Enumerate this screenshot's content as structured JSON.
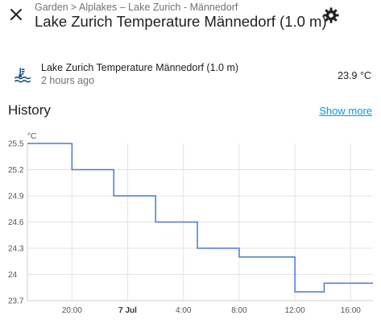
{
  "header": {
    "breadcrumb": [
      "Garden",
      "Alplakes – Lake Zurich - Männedorf"
    ],
    "breadcrumb_separator": ">",
    "title": "Lake Zurich Temperature Männedorf (1.0 m)"
  },
  "icons": {
    "close": "close-icon",
    "settings": "gear-icon",
    "entity": "water-thermometer-icon"
  },
  "entity": {
    "name": "Lake Zurich Temperature Männedorf (1.0 m)",
    "last_changed": "2 hours ago",
    "state": "23.9 °C"
  },
  "history": {
    "title": "History",
    "show_more": "Show more"
  },
  "colors": {
    "line": "#4a78d6",
    "link": "#039be5",
    "icon": "#1e5a86"
  },
  "chart_data": {
    "type": "line",
    "step": true,
    "unit": "°C",
    "x_tick_labels": [
      "20:00",
      "7 Jul",
      "4:00",
      "8:00",
      "12:00",
      "16:00"
    ],
    "x_ticks_hours": [
      20,
      24,
      28,
      32,
      36,
      40
    ],
    "xlim_hours": [
      16.8,
      41.6
    ],
    "y_tick_labels": [
      "25.5",
      "25.2",
      "24.9",
      "24.6",
      "24.3",
      "24",
      "23.7"
    ],
    "ylim": [
      23.7,
      25.5
    ],
    "grid": true,
    "series": [
      {
        "x_hours": [
          16.8,
          20.0,
          23.0,
          26.0,
          29.0,
          32.0,
          36.0,
          38.1,
          41.6
        ],
        "values": [
          25.5,
          25.2,
          24.9,
          24.6,
          24.3,
          24.2,
          23.8,
          23.9,
          23.9
        ]
      }
    ]
  }
}
